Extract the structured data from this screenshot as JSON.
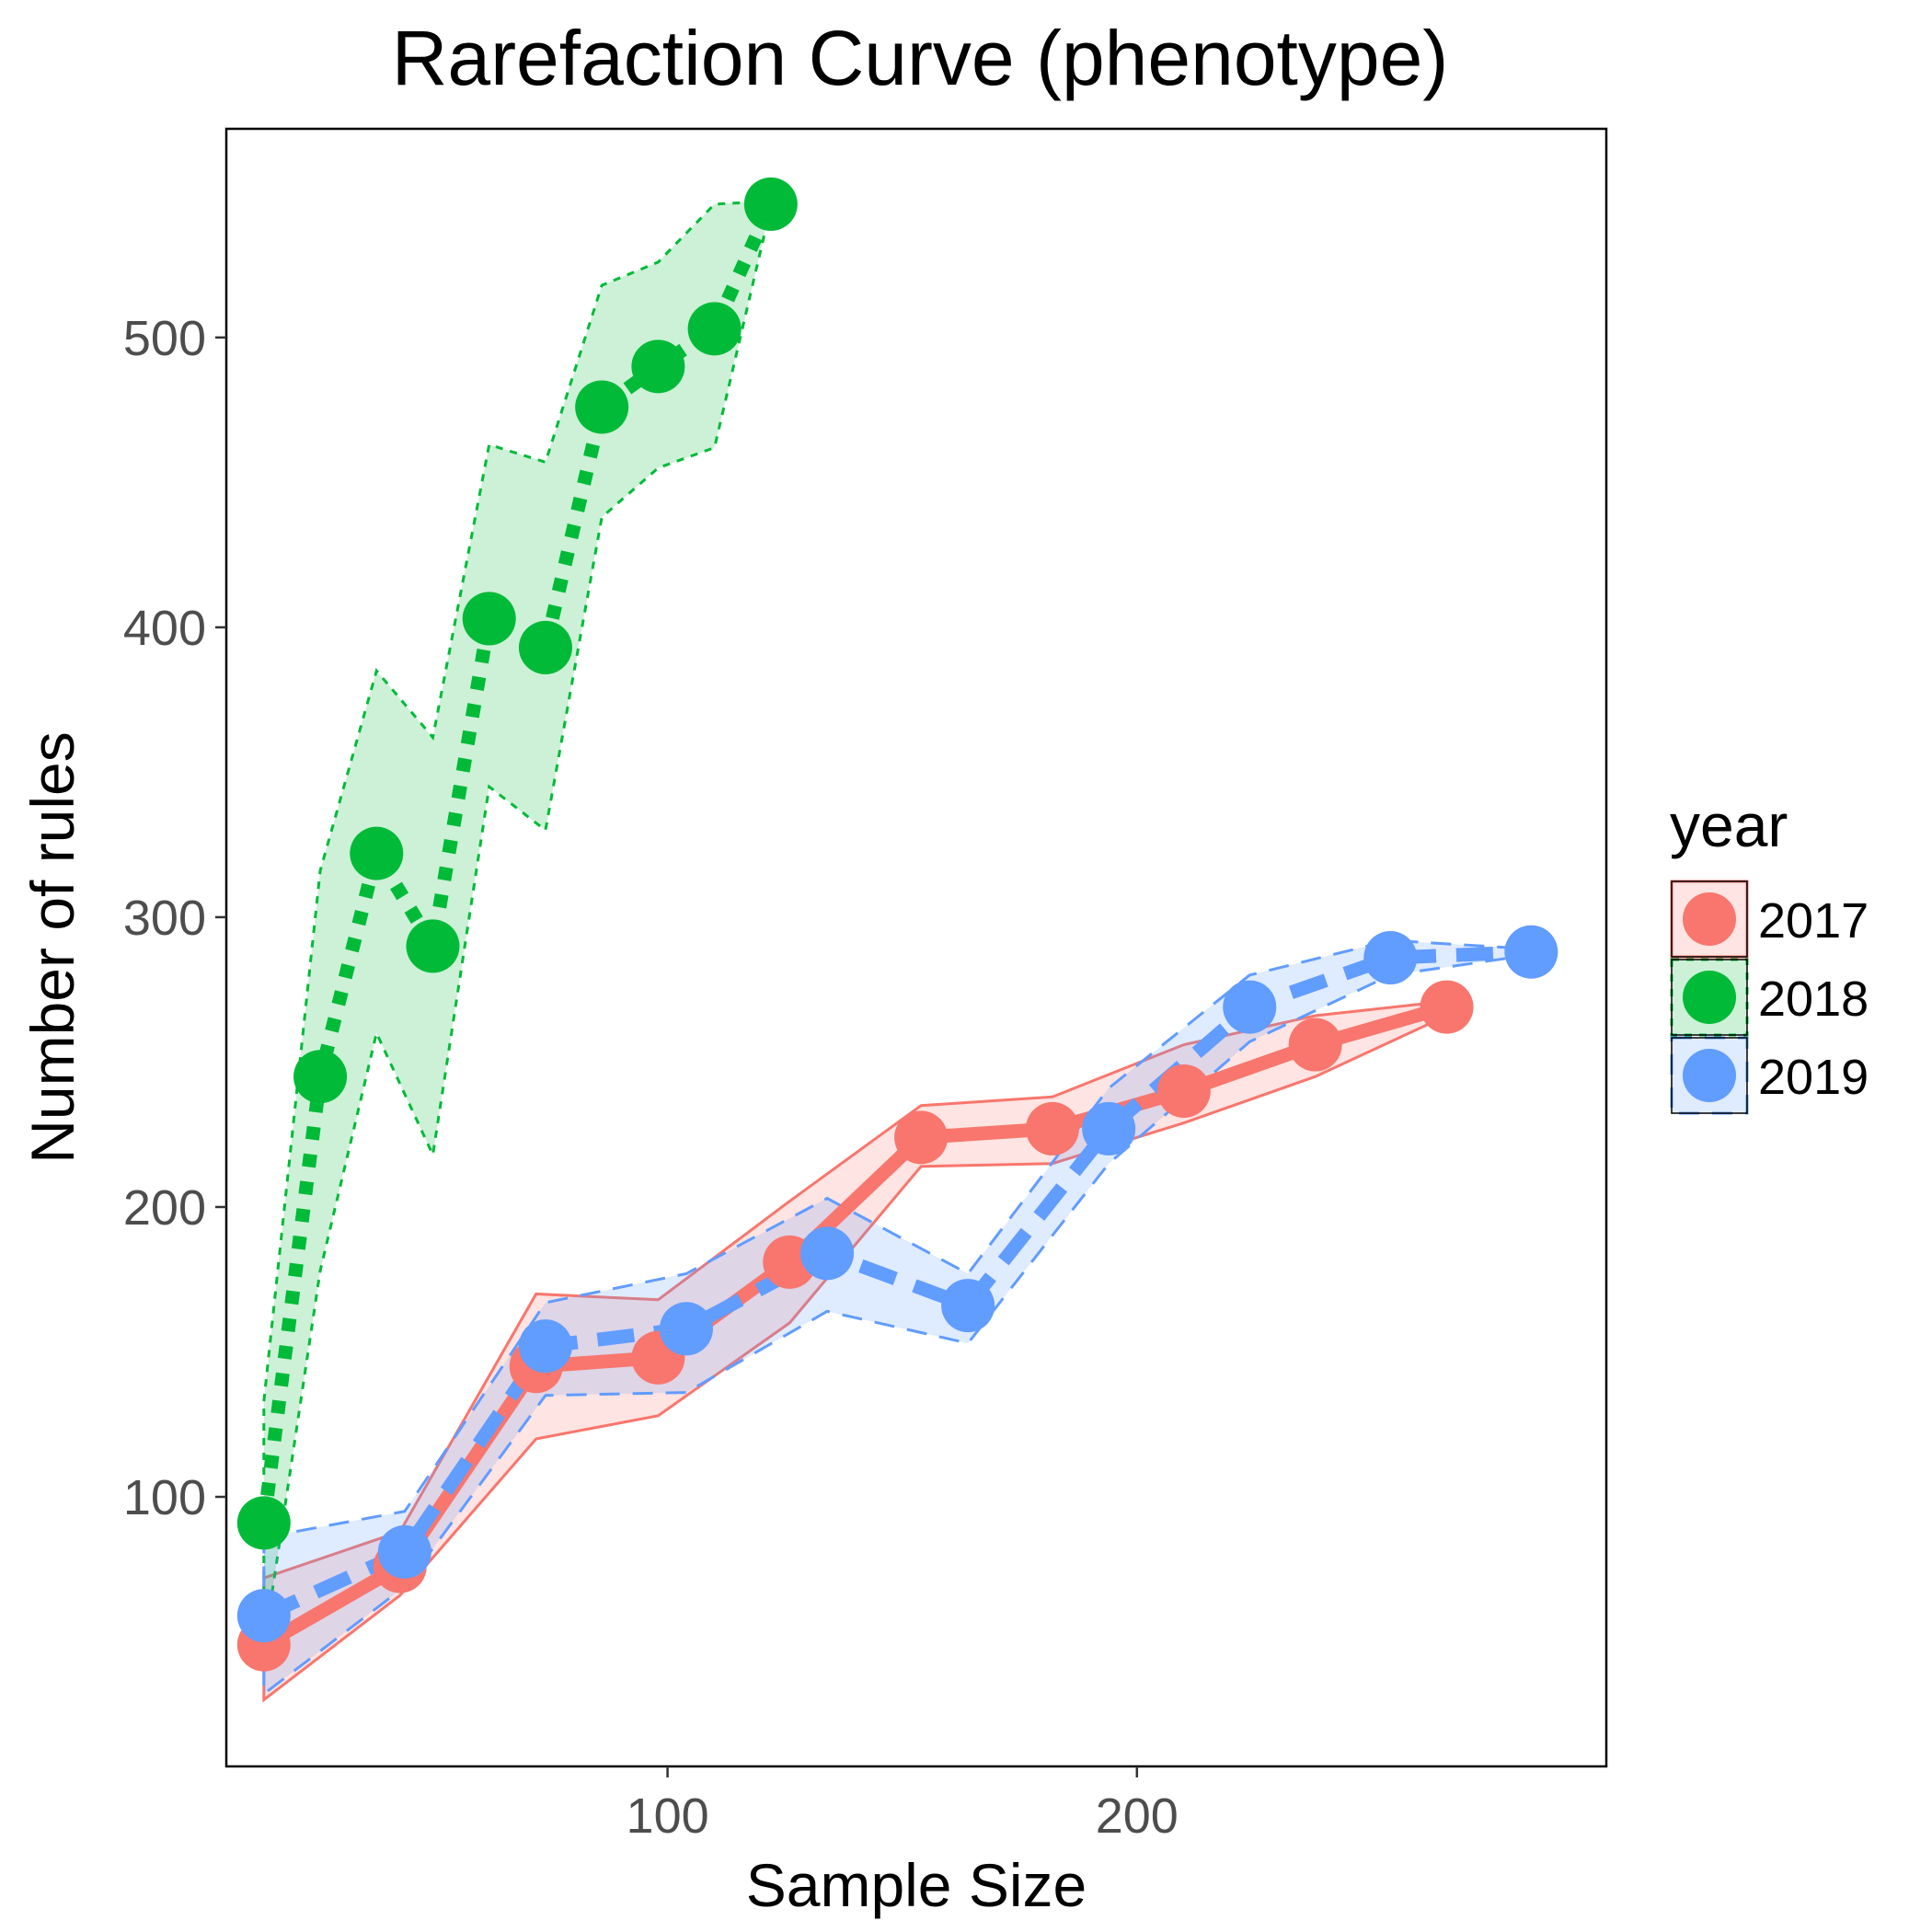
{
  "chart_data": {
    "type": "line",
    "title": "Rarefaction Curve (phenotype)",
    "xlabel": "Sample Size",
    "ylabel": "Number of rules",
    "xlim": [
      6,
      300
    ],
    "ylim": [
      7,
      572
    ],
    "x_ticks": [
      100,
      200
    ],
    "y_ticks": [
      100,
      200,
      300,
      400,
      500
    ],
    "grid": false,
    "legend": {
      "title": "year",
      "placement": "right"
    },
    "series": [
      {
        "name": "2017",
        "color": "#f8766d",
        "linestyle": "solid",
        "x": [
          14,
          43,
          72,
          98,
          126,
          154,
          182,
          210,
          238,
          266
        ],
        "y": [
          49,
          76,
          145,
          148,
          181,
          224,
          227,
          240,
          256,
          269
        ],
        "lower": [
          30,
          66,
          120,
          128,
          160,
          214,
          215,
          229,
          245,
          266
        ],
        "upper": [
          72,
          88,
          170,
          168,
          202,
          235,
          238,
          256,
          266,
          271
        ]
      },
      {
        "name": "2018",
        "color": "#00ba38",
        "linestyle": "dotted",
        "x": [
          14,
          26,
          38,
          50,
          62,
          74,
          86,
          98,
          110,
          122
        ],
        "y": [
          91,
          245,
          322,
          290,
          403,
          393,
          476,
          490,
          503,
          546
        ],
        "lower": [
          48,
          178,
          260,
          218,
          345,
          330,
          438,
          455,
          462,
          545
        ],
        "upper": [
          133,
          316,
          385,
          362,
          463,
          457,
          518,
          526,
          546,
          547
        ]
      },
      {
        "name": "2019",
        "color": "#619cff",
        "linestyle": "dashed",
        "x": [
          14,
          44,
          74,
          104,
          134,
          164,
          194,
          224,
          254,
          284
        ],
        "y": [
          59,
          81,
          152,
          158,
          184,
          166,
          227,
          269,
          286,
          288
        ],
        "lower": [
          32,
          69,
          135,
          136,
          164,
          153,
          215,
          257,
          280,
          287
        ],
        "upper": [
          86,
          95,
          167,
          177,
          203,
          177,
          241,
          280,
          292,
          289
        ]
      }
    ]
  }
}
